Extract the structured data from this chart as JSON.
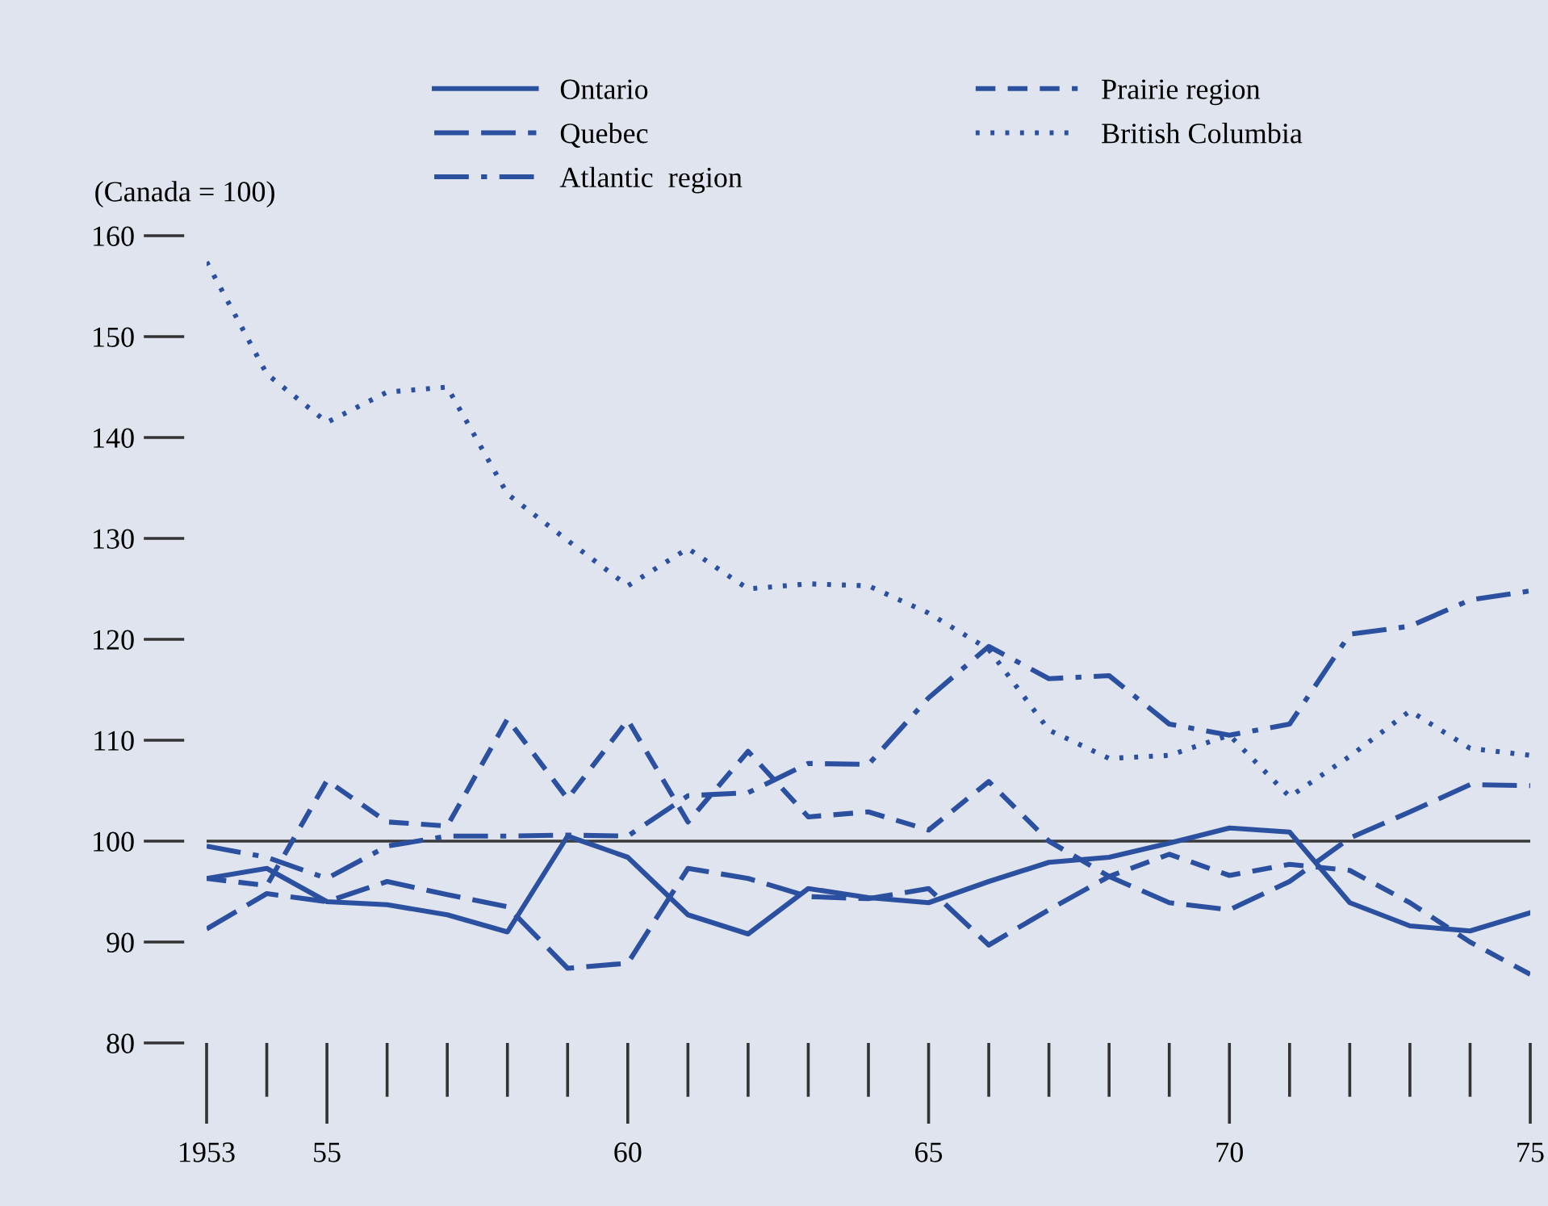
{
  "chart_data": {
    "type": "line",
    "ylabel": "(Canada = 100)",
    "x": [
      1953,
      1954,
      1955,
      1956,
      1957,
      1958,
      1959,
      1960,
      1961,
      1962,
      1963,
      1964,
      1965,
      1966,
      1967,
      1968,
      1969,
      1970,
      1971,
      1972,
      1973,
      1974,
      1975
    ],
    "series": [
      {
        "name": "Ontario",
        "color": "#2c50a0",
        "line_style": "solid",
        "values": [
          96.3,
          97.3,
          94,
          93.7,
          92.7,
          91,
          100.5,
          98.4,
          92.7,
          90.8,
          95.3,
          94.4,
          93.9,
          96,
          97.9,
          98.4,
          99.8,
          101.3,
          100.9,
          93.9,
          91.6,
          91.1,
          92.9
        ]
      },
      {
        "name": "Quebec",
        "color": "#2c50a0",
        "line_style": "longdash",
        "values": [
          91.3,
          94.8,
          94,
          96,
          94.7,
          93.5,
          87.4,
          87.9,
          97.3,
          96.3,
          94.5,
          94.3,
          95.3,
          89.7,
          93.2,
          96.5,
          93.9,
          93.2,
          96,
          100.3,
          102.9,
          105.6,
          105.5
        ]
      },
      {
        "name": "Atlantic  region",
        "color": "#2c50a0",
        "line_style": "dashdot",
        "values": [
          99.5,
          98.4,
          96.3,
          99.5,
          100.5,
          100.5,
          100.6,
          100.5,
          104.5,
          104.8,
          107.7,
          107.6,
          114.2,
          119.3,
          116.1,
          116.4,
          111.6,
          110.5,
          111.6,
          120.5,
          121.3,
          123.9,
          124.8
        ]
      },
      {
        "name": "Prairie region",
        "color": "#2c50a0",
        "line_style": "dashed",
        "values": [
          96.3,
          95.6,
          106,
          101.9,
          101.5,
          112.1,
          104.2,
          112,
          101.9,
          108.9,
          102.4,
          102.9,
          101.1,
          105.9,
          100,
          96.5,
          98.7,
          96.6,
          97.7,
          97.1,
          93.9,
          90,
          86.8
        ]
      },
      {
        "name": "British Columbia",
        "color": "#2c50a0",
        "line_style": "dotted",
        "values": [
          157.4,
          146.3,
          141.5,
          144.5,
          145,
          134.4,
          129.8,
          125.3,
          129,
          125,
          125.5,
          125.3,
          122.6,
          119,
          111,
          108.2,
          108.5,
          110.5,
          104.4,
          108.4,
          112.9,
          109.2,
          108.5
        ]
      }
    ],
    "xlim": [
      1953,
      1975
    ],
    "xticks": [
      {
        "value": 1953,
        "label": "1953"
      },
      {
        "value": 1955,
        "label": "55"
      },
      {
        "value": 1960,
        "label": "60"
      },
      {
        "value": 1965,
        "label": "65"
      },
      {
        "value": 1970,
        "label": "70"
      },
      {
        "value": 1975,
        "label": "75"
      }
    ],
    "ylim": [
      80,
      160
    ],
    "yticks": [
      80,
      90,
      100,
      110,
      120,
      130,
      140,
      150,
      160
    ],
    "ref_lines": [
      {
        "axis": "y",
        "value": 100,
        "color": "#3a3a3a"
      }
    ],
    "grid": false,
    "legend": "top",
    "marker": "none"
  }
}
